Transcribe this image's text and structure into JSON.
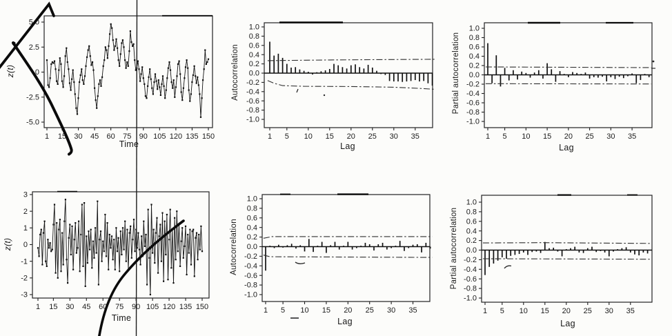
{
  "artifacts": {
    "names": [
      "scanner-streak-line",
      "pen-checkmark",
      "pen-curve-top-left",
      "pen-curve-bottom",
      "ink-specks",
      "scan-smudges"
    ]
  },
  "chart_data": [
    {
      "name": "time-series-plot-top",
      "type": "line",
      "title": "",
      "xlabel": "Time",
      "ylabel": "z(t)",
      "x_range": [
        1,
        150
      ],
      "ylim": [
        -5.5,
        5.5
      ],
      "grid": false,
      "xticks": {
        "values": [
          1,
          15,
          30,
          45,
          60,
          75,
          90,
          105,
          120,
          135,
          150
        ],
        "labels": [
          "1",
          "15",
          "30",
          "45",
          "60",
          "75",
          "90",
          "105",
          "120",
          "135",
          "150"
        ]
      },
      "yticks": {
        "values": [
          5,
          2.5,
          0,
          -2.5,
          -5
        ],
        "labels": [
          "5.0",
          "2.5",
          "0",
          "-2.5",
          "-5.0"
        ]
      },
      "values": [
        1.2,
        -1.3,
        -1.5,
        -0.6,
        0.8,
        1.0,
        0.9,
        1.1,
        0.3,
        -0.9,
        -1.2,
        0.2,
        1.4,
        0.8,
        -0.9,
        -1.5,
        -0.4,
        1.6,
        2.4,
        1.0,
        0.3,
        -1.1,
        -1.8,
        -0.7,
        0.2,
        -1.0,
        -2.2,
        -3.6,
        -4.2,
        -2.6,
        -1.0,
        -0.3,
        0.3,
        -0.8,
        -1.2,
        -0.4,
        0.6,
        1.5,
        2.2,
        2.6,
        1.6,
        0.7,
        1.0,
        0.2,
        -1.6,
        -2.8,
        -3.6,
        -2.4,
        -1.2,
        -0.8,
        -1.4,
        -0.5,
        0.6,
        1.2,
        2.5,
        2.2,
        1.4,
        2.6,
        3.8,
        4.8,
        4.4,
        3.2,
        2.2,
        2.6,
        3.3,
        2.4,
        1.2,
        0.6,
        1.8,
        2.9,
        3.2,
        2.5,
        1.2,
        0.4,
        1.0,
        0.6,
        2.1,
        4.1,
        3.0,
        2.6,
        2.8,
        1.2,
        0.2,
        0.4,
        1.1,
        0.3,
        -0.9,
        -0.2,
        0.5,
        -0.6,
        -1.2,
        -2.4,
        -2.6,
        -1.4,
        -0.5,
        0.3,
        -0.7,
        -1.6,
        -2.2,
        -1.0,
        -0.2,
        -0.9,
        -1.7,
        -0.8,
        -1.5,
        -2.3,
        -1.2,
        -0.4,
        -1.4,
        -2.6,
        -1.8,
        -0.6,
        0.4,
        1.0,
        0.2,
        -1.0,
        -1.6,
        -0.8,
        -2.5,
        -1.5,
        -0.4,
        0.8,
        1.1,
        -0.2,
        -2.0,
        -2.8,
        -1.6,
        -0.6,
        0.5,
        1.2,
        0.4,
        -1.8,
        -2.9,
        -2.2,
        -1.0,
        -0.3,
        0.6,
        -0.4,
        -1.1,
        -0.5,
        -1.3,
        -2.2,
        -4.5,
        -2.6,
        -0.8,
        0.3,
        2.2,
        0.8,
        1.0,
        1.3
      ]
    },
    {
      "name": "acf-plot-top",
      "type": "bar",
      "title": "",
      "xlabel": "Lag",
      "ylabel": "Autocorrelation",
      "ylim": [
        -1.05,
        1.05
      ],
      "grid": false,
      "n_lags": 39,
      "xticks": {
        "values": [
          1,
          5,
          10,
          15,
          20,
          25,
          30,
          35
        ],
        "labels": [
          "1",
          "5",
          "10",
          "15",
          "20",
          "25",
          "30",
          "35"
        ]
      },
      "yticks": {
        "values": [
          1,
          0.8,
          0.6,
          0.4,
          0.2,
          0,
          -0.2,
          -0.4,
          -0.6,
          -0.8,
          -1
        ],
        "labels": [
          "1.0",
          "0.8",
          "0.6",
          "0.4",
          "0.2",
          "0.0",
          "-0.2",
          "-0.4",
          "-0.6",
          "-0.8",
          "-1.0"
        ]
      },
      "values": [
        0.68,
        0.38,
        0.42,
        0.33,
        0.2,
        0.12,
        0.13,
        0.08,
        0.05,
        0.03,
        -0.03,
        0.02,
        0.04,
        0.06,
        0.09,
        0.2,
        0.17,
        0.13,
        0.1,
        0.17,
        0.19,
        0.13,
        0.1,
        0.18,
        0.12,
        0.05,
        -0.02,
        -0.04,
        -0.17,
        -0.18,
        -0.18,
        -0.19,
        -0.18,
        -0.17,
        -0.15,
        -0.18,
        -0.17,
        -0.22,
        -0.27
      ],
      "band_upper": [
        [
          0.5,
          0.27
        ],
        [
          15,
          0.285
        ],
        [
          39.5,
          0.3
        ]
      ],
      "band_lower": [
        [
          0.5,
          -0.16
        ],
        [
          2,
          -0.22
        ],
        [
          4,
          -0.27
        ],
        [
          9,
          -0.285
        ],
        [
          20,
          -0.29
        ],
        [
          30,
          -0.305
        ],
        [
          36,
          -0.33
        ],
        [
          39.5,
          -0.35
        ]
      ]
    },
    {
      "name": "pacf-plot-top",
      "type": "bar",
      "title": "",
      "xlabel": "Lag",
      "ylabel": "Partial autocorrelation",
      "ylim": [
        -1.05,
        1.05
      ],
      "grid": false,
      "n_lags": 39,
      "xticks": {
        "values": [
          1,
          5,
          10,
          15,
          20,
          25,
          30,
          35
        ],
        "labels": [
          "1",
          "5",
          "10",
          "15",
          "20",
          "25",
          "30",
          "35"
        ]
      },
      "yticks": {
        "values": [
          1,
          0.8,
          0.6,
          0.4,
          0.2,
          0,
          -0.2,
          -0.4,
          -0.6,
          -0.8,
          -1
        ],
        "labels": [
          "1.0",
          "0.8",
          "0.6",
          "0.4",
          "0.2",
          "0.0",
          "-0.2",
          "-0.4",
          "-0.6",
          "-0.8",
          "-1.0"
        ]
      },
      "values": [
        0.68,
        -0.18,
        0.42,
        -0.25,
        0.15,
        -0.12,
        0.1,
        -0.1,
        0.07,
        0.04,
        -0.06,
        0.05,
        0.1,
        -0.08,
        0.25,
        0.12,
        -0.15,
        0.08,
        0.02,
        -0.05,
        0.06,
        0.04,
        0.02,
        0.05,
        -0.08,
        -0.05,
        -0.06,
        -0.04,
        -0.14,
        -0.05,
        -0.09,
        -0.04,
        -0.07,
        -0.03,
        0.03,
        -0.18,
        -0.11,
        0.02,
        -0.05
      ],
      "band_upper": [
        [
          0.5,
          0.17
        ],
        [
          39.5,
          0.155
        ]
      ],
      "band_lower": [
        [
          0.5,
          -0.19
        ],
        [
          39.5,
          -0.195
        ]
      ]
    },
    {
      "name": "time-series-plot-bottom",
      "type": "line",
      "title": "",
      "xlabel": "Time",
      "ylabel": "z(t)",
      "x_range": [
        1,
        150
      ],
      "ylim": [
        -3.2,
        3.2
      ],
      "grid": false,
      "xticks": {
        "values": [
          1,
          15,
          30,
          45,
          60,
          75,
          90,
          105,
          120,
          135,
          150
        ],
        "labels": [
          "1",
          "15",
          "30",
          "45",
          "60",
          "75",
          "90",
          "105",
          "120",
          "135",
          "150"
        ]
      },
      "yticks": {
        "values": [
          3,
          2,
          1,
          0,
          -1,
          -2,
          -3
        ],
        "labels": [
          "3",
          "2",
          "1",
          "0",
          "-1",
          "-2",
          "-3"
        ]
      },
      "values": [
        -0.2,
        -0.7,
        0.6,
        0.9,
        -1.2,
        0.7,
        1.4,
        -1.0,
        -1.3,
        0.3,
        -0.2,
        0.1,
        -0.4,
        -0.3,
        1.2,
        2.4,
        -1.7,
        1.3,
        -2.0,
        0.9,
        1.5,
        -1.6,
        0.7,
        -1.2,
        1.4,
        2.7,
        -0.9,
        -2.3,
        0.4,
        1.2,
        -0.6,
        1.1,
        -1.5,
        0.3,
        1.3,
        -0.5,
        -0.2,
        1.4,
        -1.6,
        0.6,
        2.4,
        -1.3,
        2.5,
        -2.5,
        0.5,
        -1.1,
        0.8,
        -0.3,
        0.9,
        -1.4,
        0.2,
        -0.8,
        1.0,
        -0.5,
        2.6,
        -2.4,
        0.3,
        0.8,
        -1.0,
        0.2,
        -0.4,
        1.8,
        -0.7,
        1.3,
        -1.5,
        0.6,
        -0.2,
        0.5,
        -0.9,
        0.3,
        -1.5,
        1.0,
        -0.4,
        0.4,
        -1.6,
        0.8,
        -0.6,
        1.0,
        -0.3,
        1.4,
        -1.0,
        0.9,
        -1.5,
        0.7,
        1.1,
        -0.8,
        0.3,
        1.5,
        -0.4,
        0.9,
        -0.2,
        0.7,
        -0.3,
        -1.2,
        0.5,
        -0.7,
        1.4,
        -0.1,
        0.6,
        -2.4,
        2.1,
        -0.8,
        -3.0,
        2.4,
        -0.5,
        0.9,
        -1.1,
        0.7,
        1.6,
        -1.7,
        0.5,
        1.2,
        -1.0,
        1.9,
        -2.2,
        1.4,
        -0.6,
        1.8,
        -2.1,
        0.3,
        2.1,
        -1.4,
        0.9,
        -2.3,
        1.6,
        -0.9,
        2.0,
        -0.4,
        1.2,
        -1.3,
        0.2,
        1.0,
        -0.8,
        -0.1,
        1.1,
        -1.8,
        0.6,
        -0.5,
        0.9,
        -1.2,
        0.8,
        0.9,
        -1.9,
        0.4,
        0.7,
        -0.9,
        0.6,
        -0.3,
        1.1,
        -0.4
      ]
    },
    {
      "name": "acf-plot-bottom",
      "type": "bar",
      "title": "",
      "xlabel": "Lag",
      "ylabel": "Autocorrelation",
      "ylim": [
        -1.05,
        1.05
      ],
      "grid": false,
      "n_lags": 39,
      "xticks": {
        "values": [
          1,
          5,
          10,
          15,
          20,
          25,
          30,
          35
        ],
        "labels": [
          "1",
          "5",
          "10",
          "15",
          "20",
          "25",
          "30",
          "35"
        ]
      },
      "yticks": {
        "values": [
          1,
          0.8,
          0.6,
          0.4,
          0.2,
          0,
          -0.2,
          -0.4,
          -0.6,
          -0.8,
          -1
        ],
        "labels": [
          "1.0",
          "0.8",
          "0.6",
          "0.4",
          "0.2",
          "0.0",
          "-0.2",
          "-0.4",
          "-0.6",
          "-0.8",
          "-1.0"
        ]
      },
      "values": [
        -0.5,
        0.02,
        -0.03,
        0.04,
        -0.02,
        0.03,
        0.06,
        -0.04,
        0.03,
        -0.1,
        0.16,
        -0.11,
        0.02,
        0.1,
        -0.13,
        0.03,
        0.1,
        -0.06,
        0.02,
        0.1,
        -0.06,
        -0.03,
        0.02,
        0.08,
        0.05,
        -0.08,
        0.05,
        0.08,
        -0.06,
        -0.03,
        0.02,
        0.12,
        -0.09,
        -0.03,
        0.04,
        0.05,
        -0.12,
        0.08,
        -0.04
      ],
      "band_upper": [
        [
          0.5,
          0.175
        ],
        [
          2.5,
          0.21
        ],
        [
          39.5,
          0.21
        ]
      ],
      "band_lower": [
        [
          0.5,
          -0.175
        ],
        [
          2,
          -0.21
        ],
        [
          39.5,
          -0.225
        ]
      ]
    },
    {
      "name": "pacf-plot-bottom",
      "type": "bar",
      "title": "",
      "xlabel": "Lag",
      "ylabel": "Partial autocorrelation",
      "ylim": [
        -1.05,
        1.05
      ],
      "grid": false,
      "n_lags": 39,
      "xticks": {
        "values": [
          1,
          5,
          10,
          15,
          20,
          25,
          30,
          35
        ],
        "labels": [
          "1",
          "5",
          "10",
          "15",
          "20",
          "25",
          "30",
          "35"
        ]
      },
      "yticks": {
        "values": [
          1,
          0.8,
          0.6,
          0.4,
          0.2,
          0,
          -0.2,
          -0.4,
          -0.6,
          -0.8,
          -1
        ],
        "labels": [
          "1.0",
          "0.8",
          "0.6",
          "0.4",
          "0.2",
          "0.0",
          "-0.2",
          "-0.4",
          "-0.6",
          "-0.8",
          "-1.0"
        ]
      },
      "values": [
        -0.52,
        -0.35,
        -0.28,
        -0.22,
        -0.15,
        -0.18,
        -0.12,
        -0.1,
        -0.08,
        -0.05,
        -0.1,
        -0.04,
        -0.03,
        -0.06,
        0.17,
        0.04,
        0.05,
        -0.03,
        -0.13,
        0.02,
        0.04,
        0.07,
        -0.05,
        -0.06,
        0.04,
        0.07,
        -0.04,
        -0.02,
        -0.05,
        -0.13,
        -0.03,
        0.02,
        0.04,
        0.06,
        -0.05,
        -0.09,
        -0.11,
        -0.05,
        -0.07
      ],
      "band_upper": [
        [
          0.5,
          0.15
        ],
        [
          14.5,
          0.155
        ],
        [
          39.5,
          0.14
        ]
      ],
      "band_lower": [
        [
          0.5,
          -0.18
        ],
        [
          39.5,
          -0.19
        ]
      ]
    }
  ]
}
